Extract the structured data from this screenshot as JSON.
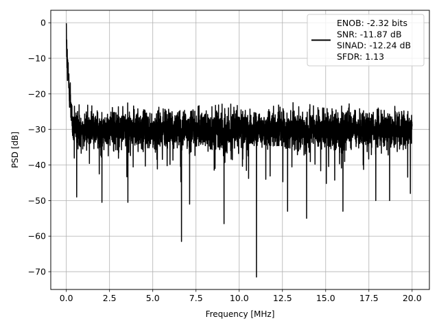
{
  "chart_data": {
    "type": "line",
    "xlabel": "Frequency [MHz]",
    "ylabel": "PSD [dB]",
    "xlim": [
      -0.9,
      21.0
    ],
    "ylim": [
      -75.0,
      3.5
    ],
    "xticks": [
      0.0,
      2.5,
      5.0,
      7.5,
      10.0,
      12.5,
      15.0,
      17.5,
      20.0
    ],
    "xtick_labels": [
      "0.0",
      "2.5",
      "5.0",
      "7.5",
      "10.0",
      "12.5",
      "15.0",
      "17.5",
      "20.0"
    ],
    "yticks": [
      0,
      -10,
      -20,
      -30,
      -40,
      -50,
      -60,
      -70
    ],
    "ytick_labels": [
      "0",
      "−10",
      "−20",
      "−30",
      "−40",
      "−50",
      "−60",
      "−70"
    ],
    "grid": true,
    "legend": {
      "placement": "top-right",
      "lines": [
        "ENOB: -2.32 bits",
        "SNR: -11.87 dB",
        "SINAD: -12.24 dB",
        "SFDR: 1.13"
      ]
    },
    "series": [
      {
        "color": "#000000",
        "x_range": [
          0.0,
          20.0
        ],
        "points_count": 4000,
        "noise_floor_db": -30,
        "start_peak_db": 0,
        "notable_minima": [
          {
            "x": 6.66,
            "y": -61.5
          },
          {
            "x": 7.13,
            "y": -51.0
          },
          {
            "x": 9.12,
            "y": -56.5
          },
          {
            "x": 11.0,
            "y": -71.5
          },
          {
            "x": 12.8,
            "y": -53.0
          },
          {
            "x": 13.9,
            "y": -55.0
          },
          {
            "x": 16.0,
            "y": -53.0
          },
          {
            "x": 17.9,
            "y": -50.0
          },
          {
            "x": 18.7,
            "y": -50.0
          },
          {
            "x": 19.9,
            "y": -48.0
          },
          {
            "x": 2.06,
            "y": -50.5
          },
          {
            "x": 3.56,
            "y": -50.5
          },
          {
            "x": 0.6,
            "y": -49.0
          }
        ]
      }
    ]
  }
}
